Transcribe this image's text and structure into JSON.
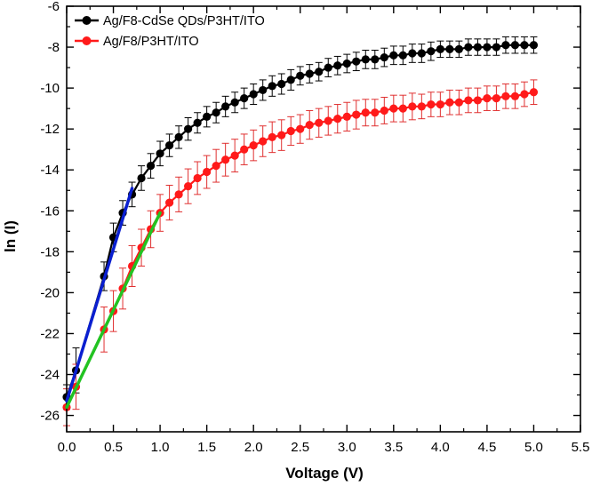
{
  "chart_data": {
    "type": "scatter",
    "xlabel": "Voltage (V)",
    "ylabel": "ln (I)",
    "xlim": [
      0.0,
      5.5
    ],
    "ylim": [
      -26.8,
      -6.0
    ],
    "x_ticks": [
      "0.0",
      "0.5",
      "1.0",
      "1.5",
      "2.0",
      "2.5",
      "3.0",
      "3.5",
      "4.0",
      "4.5",
      "5.0",
      "5.5"
    ],
    "y_ticks": [
      "-26",
      "-24",
      "-22",
      "-20",
      "-18",
      "-16",
      "-14",
      "-12",
      "-10",
      "-8",
      "-6"
    ],
    "grid": false,
    "legend_position": "top-left",
    "series": [
      {
        "name": "Ag/F8-CdSe QDs/P3HT/ITO",
        "color": "#000000",
        "error_bar_color": "#000000",
        "x": [
          0.0,
          0.1,
          0.4,
          0.5,
          0.6,
          0.7,
          0.8,
          0.9,
          1.0,
          1.1,
          1.2,
          1.3,
          1.4,
          1.5,
          1.6,
          1.7,
          1.8,
          1.9,
          2.0,
          2.1,
          2.2,
          2.3,
          2.4,
          2.5,
          2.6,
          2.7,
          2.8,
          2.9,
          3.0,
          3.1,
          3.2,
          3.3,
          3.4,
          3.5,
          3.6,
          3.7,
          3.8,
          3.9,
          4.0,
          4.1,
          4.2,
          4.3,
          4.4,
          4.5,
          4.6,
          4.7,
          4.8,
          4.9,
          5.0
        ],
        "y": [
          -25.1,
          -23.8,
          -19.2,
          -17.3,
          -16.1,
          -15.2,
          -14.4,
          -13.8,
          -13.2,
          -12.8,
          -12.4,
          -12.0,
          -11.7,
          -11.4,
          -11.2,
          -10.9,
          -10.7,
          -10.5,
          -10.3,
          -10.1,
          -9.9,
          -9.8,
          -9.6,
          -9.4,
          -9.3,
          -9.2,
          -9.0,
          -8.9,
          -8.8,
          -8.7,
          -8.6,
          -8.6,
          -8.5,
          -8.4,
          -8.4,
          -8.3,
          -8.3,
          -8.2,
          -8.1,
          -8.1,
          -8.1,
          -8.0,
          -8.0,
          -8.0,
          -8.0,
          -7.9,
          -7.9,
          -7.9,
          -7.9
        ],
        "error": [
          0.6,
          1.1,
          0.7,
          0.7,
          0.6,
          0.6,
          0.6,
          0.6,
          0.6,
          0.55,
          0.55,
          0.55,
          0.5,
          0.5,
          0.5,
          0.5,
          0.5,
          0.5,
          0.5,
          0.5,
          0.5,
          0.5,
          0.5,
          0.45,
          0.45,
          0.45,
          0.45,
          0.45,
          0.45,
          0.45,
          0.45,
          0.45,
          0.45,
          0.45,
          0.45,
          0.45,
          0.45,
          0.45,
          0.4,
          0.4,
          0.4,
          0.4,
          0.4,
          0.4,
          0.4,
          0.4,
          0.4,
          0.4,
          0.4
        ]
      },
      {
        "name": "Ag/F8/P3HT/ITO",
        "color": "#ff1a1a",
        "error_bar_color": "#e03030",
        "x": [
          0.0,
          0.1,
          0.4,
          0.5,
          0.6,
          0.7,
          0.8,
          0.9,
          1.0,
          1.1,
          1.2,
          1.3,
          1.4,
          1.5,
          1.6,
          1.7,
          1.8,
          1.9,
          2.0,
          2.1,
          2.2,
          2.3,
          2.4,
          2.5,
          2.6,
          2.7,
          2.8,
          2.9,
          3.0,
          3.1,
          3.2,
          3.3,
          3.4,
          3.5,
          3.6,
          3.7,
          3.8,
          3.9,
          4.0,
          4.1,
          4.2,
          4.3,
          4.4,
          4.5,
          4.6,
          4.7,
          4.8,
          4.9,
          5.0
        ],
        "y": [
          -25.6,
          -24.6,
          -21.8,
          -20.9,
          -19.8,
          -18.7,
          -17.8,
          -16.9,
          -16.1,
          -15.6,
          -15.2,
          -14.8,
          -14.4,
          -14.1,
          -13.8,
          -13.5,
          -13.3,
          -13.0,
          -12.8,
          -12.6,
          -12.4,
          -12.3,
          -12.1,
          -12.0,
          -11.8,
          -11.7,
          -11.6,
          -11.5,
          -11.4,
          -11.3,
          -11.2,
          -11.2,
          -11.1,
          -11.0,
          -11.0,
          -10.9,
          -10.9,
          -10.8,
          -10.8,
          -10.7,
          -10.7,
          -10.6,
          -10.6,
          -10.5,
          -10.5,
          -10.4,
          -10.4,
          -10.3,
          -10.2
        ],
        "error": [
          0.9,
          1.1,
          1.1,
          1.0,
          1.0,
          1.0,
          0.9,
          0.9,
          0.9,
          0.85,
          0.85,
          0.85,
          0.8,
          0.8,
          0.8,
          0.8,
          0.8,
          0.75,
          0.75,
          0.75,
          0.75,
          0.75,
          0.7,
          0.7,
          0.7,
          0.7,
          0.7,
          0.7,
          0.7,
          0.7,
          0.65,
          0.65,
          0.65,
          0.65,
          0.65,
          0.65,
          0.6,
          0.6,
          0.6,
          0.6,
          0.6,
          0.6,
          0.6,
          0.6,
          0.6,
          0.6,
          0.6,
          0.6,
          0.6
        ]
      }
    ],
    "fit_lines": [
      {
        "color": "#0a1fd0",
        "x": [
          0.0,
          0.7
        ],
        "y": [
          -25.3,
          -14.9
        ]
      },
      {
        "color": "#22c322",
        "x": [
          0.0,
          1.0
        ],
        "y": [
          -25.6,
          -16.1
        ]
      }
    ]
  }
}
